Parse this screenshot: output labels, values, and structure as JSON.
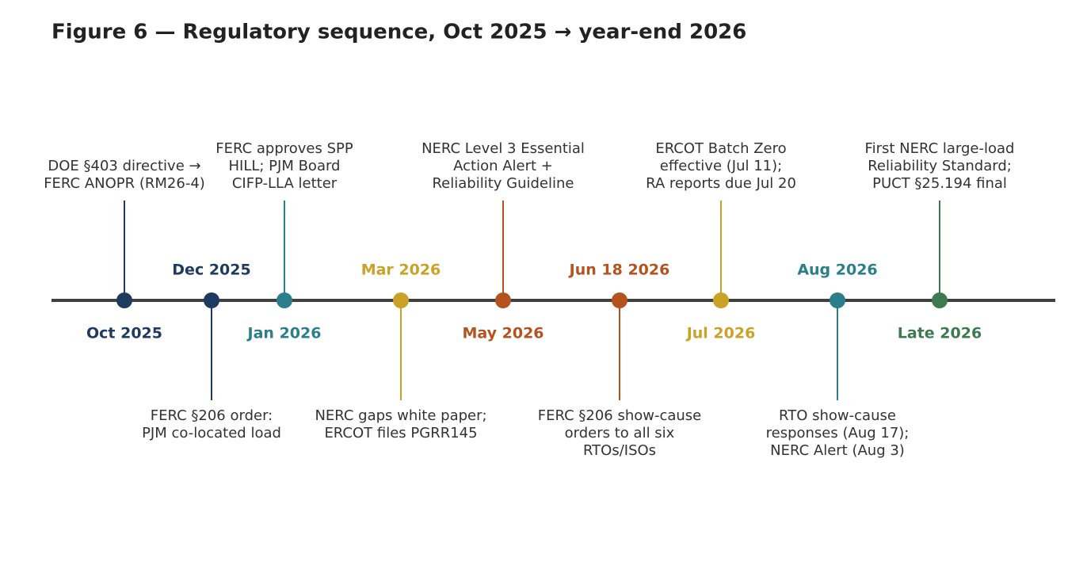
{
  "title": "Figure 6 — Regulatory sequence, Oct 2025 → year-end 2026",
  "events": [
    {
      "date": "Oct 2025",
      "color": "#1f3a5f",
      "lines": [
        "DOE §403 directive →",
        "FERC ANOPR (RM26-4)"
      ]
    },
    {
      "date": "Dec 2025",
      "color": "#1f3a5f",
      "lines": [
        "FERC §206 order:",
        "PJM co-located load"
      ]
    },
    {
      "date": "Jan 2026",
      "color": "#2a7f8a",
      "lines": [
        "FERC approves SPP",
        "HILL; PJM Board",
        "CIFP-LLA letter"
      ]
    },
    {
      "date": "Mar 2026",
      "color": "#c9a227",
      "lines": [
        "NERC gaps white paper;",
        "ERCOT files PGRR145"
      ]
    },
    {
      "date": "May 2026",
      "color": "#b5531f",
      "lines": [
        "NERC Level 3 Essential",
        "Action Alert +",
        "Reliability Guideline"
      ]
    },
    {
      "date": "Jun 18 2026",
      "color": "#b5531f",
      "lines": [
        "FERC §206 show-cause",
        "orders to all six",
        "RTOs/ISOs"
      ]
    },
    {
      "date": "Jul 2026",
      "color": "#c9a227",
      "lines": [
        "ERCOT Batch Zero",
        "effective (Jul 11);",
        "RA reports due Jul 20"
      ]
    },
    {
      "date": "Aug 2026",
      "color": "#2a7f8a",
      "lines": [
        "RTO show-cause",
        "responses (Aug 17);",
        "NERC Alert (Aug 3)"
      ]
    },
    {
      "date": "Late 2026",
      "color": "#3d7a4f",
      "lines": [
        "First NERC large-load",
        "Reliability Standard;",
        "PUCT §25.194 final"
      ]
    }
  ]
}
